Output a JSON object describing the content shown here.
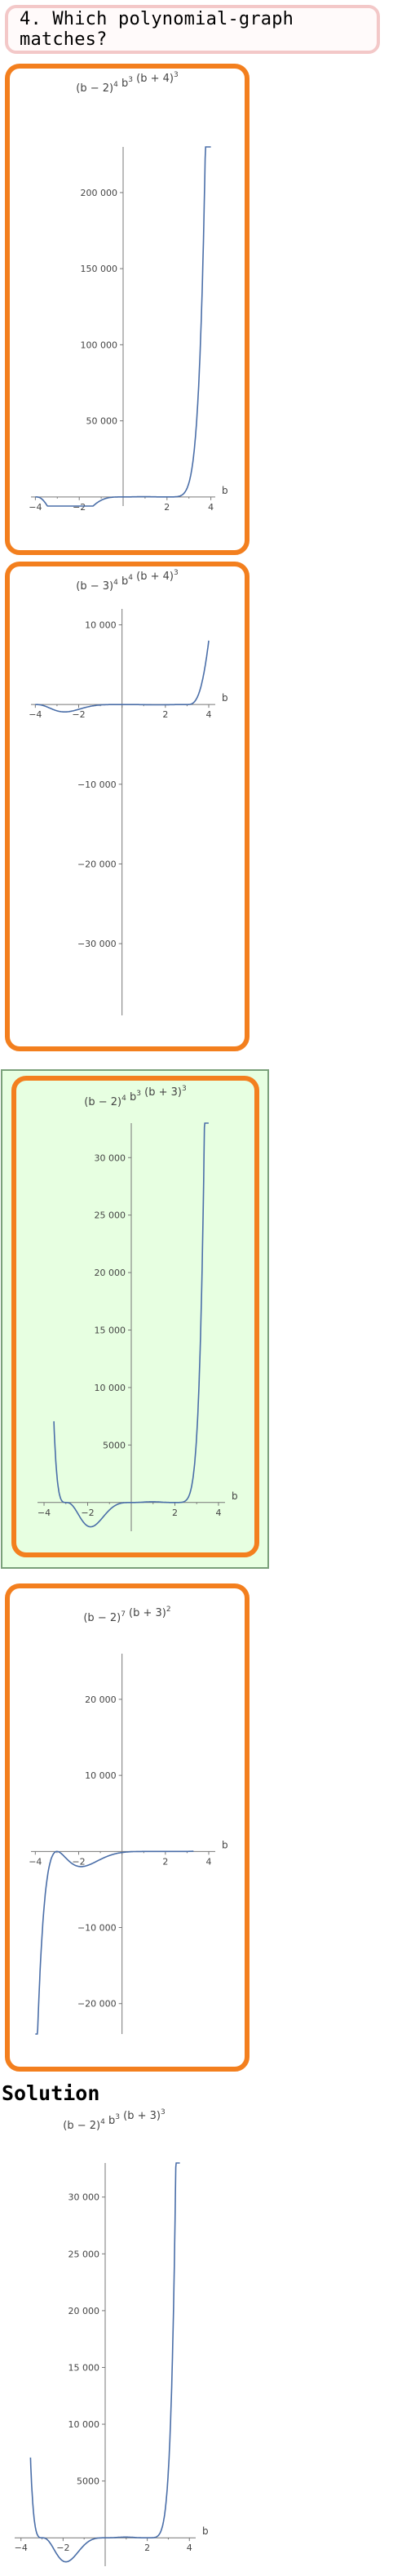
{
  "question": {
    "text": "4. Which polynomial-graph matches?"
  },
  "colors": {
    "choice_border": "#f37f1e",
    "selected_bg": "#e7ffe1",
    "curve": "#4a6ea8",
    "axis": "#777777",
    "question_border": "#f3c8c8"
  },
  "choices": [
    {
      "label_html": "(b − 2)<tspan baseline-shift='super' font-size='9'>4</tspan> b<tspan baseline-shift='super' font-size='9'>3</tspan> (b + 4)<tspan baseline-shift='super' font-size='9'>3</tspan>",
      "label_parts": [
        "(b − 2)",
        "4",
        " b",
        "3",
        " (b + 4)",
        "3"
      ],
      "selected": false,
      "chart_data": {
        "type": "line",
        "title": "(b − 2)^4 b^3 (b + 4)^3",
        "xlabel": "b",
        "ylabel": "",
        "x_ticks": [
          "−4",
          "−2",
          "2",
          "4"
        ],
        "y_ticks": [
          "50 000",
          "100 000",
          "150 000",
          "200 000"
        ],
        "xlim": [
          -4.2,
          4.2
        ],
        "ylim": [
          -6000,
          230000
        ],
        "series": [
          {
            "expr": "pow(b-2,4)*pow(b,3)*pow(b+4,3)",
            "x": [
              -4,
              4
            ]
          }
        ]
      }
    },
    {
      "label_parts": [
        "(b − 3)",
        "4",
        " b",
        "4",
        " (b + 4)",
        "3"
      ],
      "selected": false,
      "chart_data": {
        "type": "line",
        "title": "(b − 3)^4 b^4 (b + 4)^3",
        "xlabel": "b",
        "ylabel": "",
        "x_ticks": [
          "−4",
          "−2",
          "2",
          "4"
        ],
        "y_ticks": [
          "10 000",
          "−10 000",
          "−20 000",
          "−30 000"
        ],
        "xlim": [
          -4.2,
          4.3
        ],
        "ylim": [
          -39000,
          12000
        ],
        "series": [
          {
            "expr": "scaled",
            "x": [
              -4,
              4
            ]
          }
        ]
      }
    },
    {
      "label_parts": [
        "(b − 2)",
        "4",
        " b",
        "3",
        " (b + 3)",
        "3"
      ],
      "selected": true,
      "chart_data": {
        "type": "line",
        "title": "(b − 2)^4 b^3 (b + 3)^3",
        "xlabel": "b",
        "ylabel": "",
        "x_ticks": [
          "−4",
          "−2",
          "2",
          "4"
        ],
        "y_ticks": [
          "5000",
          "10 000",
          "15 000",
          "20 000",
          "25 000",
          "30 000"
        ],
        "xlim": [
          -4.3,
          4.3
        ],
        "ylim": [
          -2500,
          33000
        ],
        "series": [
          {
            "expr": "pow(b-2,4)*pow(b,3)*pow(b+3,3)",
            "x": [
              -3.55,
              3.55
            ]
          }
        ]
      }
    },
    {
      "label_parts": [
        "(b − 2)",
        "7",
        " (b + 3)",
        "2",
        "",
        ""
      ],
      "selected": false,
      "chart_data": {
        "type": "line",
        "title": "(b − 2)^7 (b + 3)^2",
        "xlabel": "b",
        "ylabel": "",
        "x_ticks": [
          "−4",
          "−2",
          "2",
          "4"
        ],
        "y_ticks": [
          "20 000",
          "10 000",
          "−10 000",
          "−20 000"
        ],
        "xlim": [
          -4.2,
          4.3
        ],
        "ylim": [
          -24000,
          26000
        ],
        "series": [
          {
            "expr": "poly4",
            "x": [
              -4,
              3.3
            ]
          }
        ]
      }
    }
  ],
  "solution": {
    "title": "Solution",
    "label_parts": [
      "(b − 2)",
      "4",
      " b",
      "3",
      " (b + 3)",
      "3"
    ],
    "chart_data": {
      "type": "line",
      "title": "(b − 2)^4 b^3 (b + 3)^3",
      "xlabel": "b",
      "ylabel": "",
      "x_ticks": [
        "−4",
        "−2",
        "2",
        "4"
      ],
      "y_ticks": [
        "5000",
        "10 000",
        "15 000",
        "20 000",
        "25 000",
        "30 000"
      ],
      "xlim": [
        -4.3,
        4.3
      ],
      "ylim": [
        -2500,
        33000
      ],
      "series": [
        {
          "expr": "pow(b-2,4)*pow(b,3)*pow(b+3,3)",
          "x": [
            -3.55,
            3.55
          ]
        }
      ]
    }
  }
}
